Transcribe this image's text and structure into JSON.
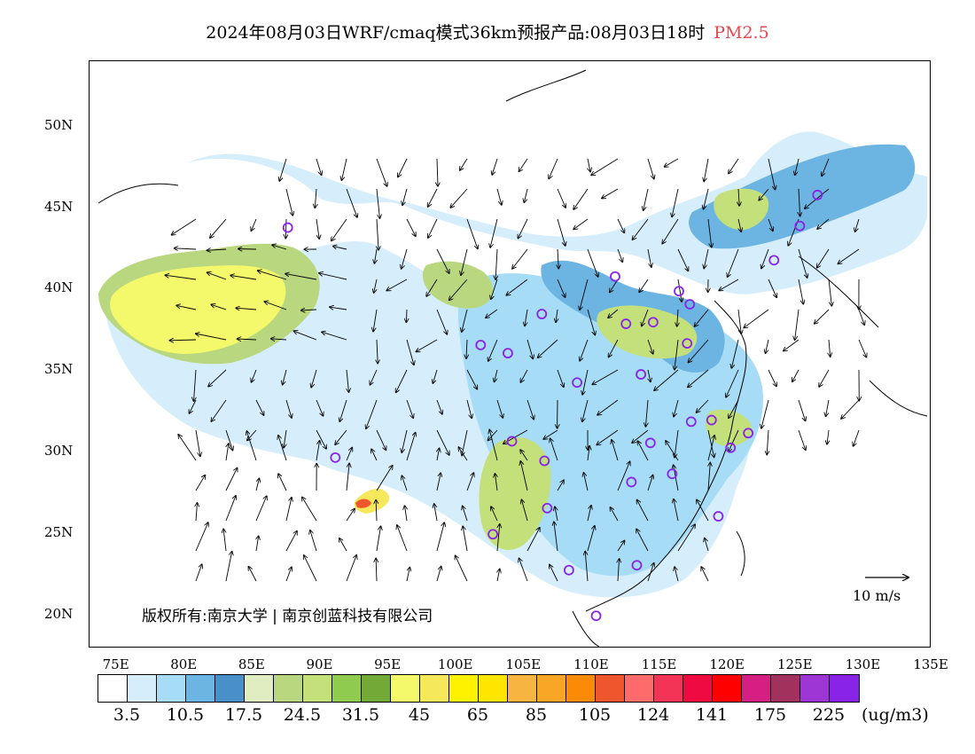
{
  "header": {
    "title": "2024年08月03日WRF/cmaq模式36km预报产品:08月03日18时",
    "variable": "PM2.5"
  },
  "axes": {
    "lat_ticks": [
      "50N",
      "45N",
      "40N",
      "35N",
      "30N",
      "25N",
      "20N"
    ],
    "lon_ticks": [
      "75E",
      "80E",
      "85E",
      "90E",
      "95E",
      "100E",
      "105E",
      "110E",
      "115E",
      "120E",
      "125E",
      "130E",
      "135E"
    ]
  },
  "copyright": "版权所有:南京大学 | 南京创蓝科技有限公司",
  "wind_reference": {
    "label": "10 m/s"
  },
  "colorbar": {
    "colors": [
      "#ffffff",
      "#d6eefb",
      "#a6dcf6",
      "#6cb4e2",
      "#4a90c8",
      "#dfedc0",
      "#b9d77f",
      "#c4e07a",
      "#8fcb4f",
      "#72a937",
      "#f3f96a",
      "#f5e85a",
      "#fff200",
      "#ffe600",
      "#f8b440",
      "#f9a525",
      "#fb8b07",
      "#f0562e",
      "#ff6b6b",
      "#f43456",
      "#f00a42",
      "#ff0000",
      "#d71e83",
      "#a2325d",
      "#9d36d4",
      "#8a23e8"
    ],
    "labels": [
      "3.5",
      "10.5",
      "17.5",
      "24.5",
      "31.5",
      "45",
      "65",
      "85",
      "105",
      "124",
      "141",
      "175",
      "225"
    ],
    "unit": "(ug/m3)"
  },
  "stations": [
    [
      87.6,
      43.8
    ],
    [
      91.1,
      29.7
    ],
    [
      101.8,
      36.6
    ],
    [
      103.8,
      36.1
    ],
    [
      106.3,
      38.5
    ],
    [
      108.9,
      34.3
    ],
    [
      111.7,
      40.8
    ],
    [
      112.5,
      37.9
    ],
    [
      114.5,
      38.0
    ],
    [
      116.4,
      39.9
    ],
    [
      117.2,
      39.1
    ],
    [
      117.0,
      36.7
    ],
    [
      113.6,
      34.8
    ],
    [
      112.9,
      28.2
    ],
    [
      114.3,
      30.6
    ],
    [
      115.9,
      28.7
    ],
    [
      117.3,
      31.9
    ],
    [
      118.8,
      32.0
    ],
    [
      120.2,
      30.3
    ],
    [
      121.5,
      31.2
    ],
    [
      119.3,
      26.1
    ],
    [
      113.3,
      23.1
    ],
    [
      108.3,
      22.8
    ],
    [
      110.3,
      20.0
    ],
    [
      106.7,
      26.6
    ],
    [
      102.7,
      25.0
    ],
    [
      104.1,
      30.7
    ],
    [
      106.5,
      29.5
    ],
    [
      123.4,
      41.8
    ],
    [
      125.3,
      43.9
    ],
    [
      126.6,
      45.8
    ]
  ]
}
